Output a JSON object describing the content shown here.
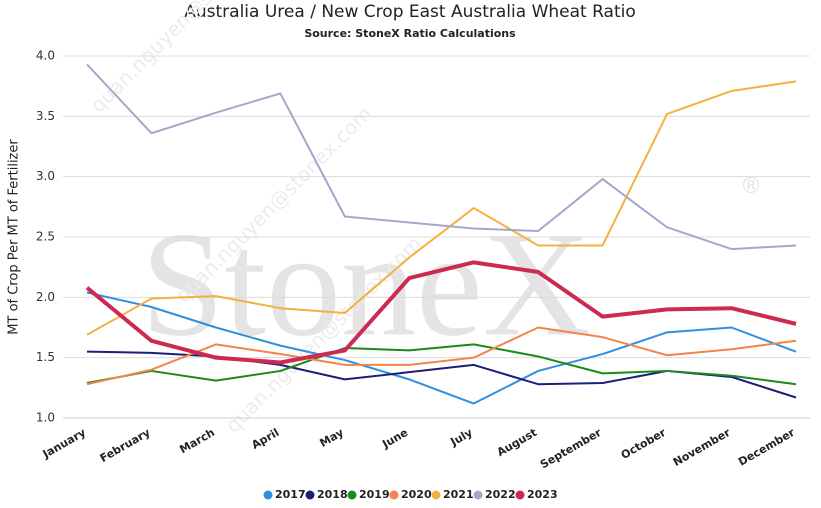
{
  "chart_data": {
    "type": "line",
    "title": "Australia Urea / New Crop East Australia Wheat Ratio",
    "subtitle": "Source: StoneX Ratio Calculations",
    "y_label": "MT of Crop Per MT of Fertilizer",
    "watermark": "StoneX",
    "watermark_mark": "®",
    "watermark_email": "quan.nguyen@stonex.com",
    "categories": [
      "January",
      "February",
      "March",
      "April",
      "May",
      "June",
      "July",
      "August",
      "September",
      "October",
      "November",
      "December"
    ],
    "ylim": [
      1.0,
      4.0
    ],
    "yticks": [
      {
        "value": 1.0,
        "label": "1.0"
      },
      1.5,
      {
        "value": 2.0,
        "label": "2.0"
      },
      2.5,
      {
        "value": 3.0,
        "label": "3.0"
      },
      3.5,
      {
        "value": 4.0,
        "label": "4.0"
      }
    ],
    "grid": true,
    "legend": "bottom",
    "series": [
      {
        "name": "2017",
        "color": "#2f8fe0",
        "values": [
          2.04,
          1.92,
          1.75,
          1.6,
          1.48,
          1.32,
          1.12,
          1.39,
          1.53,
          1.71,
          1.75,
          1.55
        ]
      },
      {
        "name": "2018",
        "color": "#1b1f7a",
        "values": [
          1.55,
          1.54,
          1.51,
          1.44,
          1.32,
          1.38,
          1.44,
          1.28,
          1.29,
          1.39,
          1.34,
          1.17
        ]
      },
      {
        "name": "2019",
        "color": "#1a8a1a",
        "values": [
          1.29,
          1.39,
          1.31,
          1.39,
          1.58,
          1.56,
          1.61,
          1.51,
          1.37,
          1.39,
          1.35,
          1.28
        ]
      },
      {
        "name": "2020",
        "color": "#f5844c",
        "values": [
          1.28,
          1.4,
          1.61,
          1.53,
          1.44,
          1.44,
          1.5,
          1.75,
          1.67,
          1.52,
          1.57,
          1.64
        ]
      },
      {
        "name": "2021",
        "color": "#f5b041",
        "values": [
          1.69,
          1.99,
          2.01,
          1.91,
          1.87,
          2.33,
          2.74,
          2.43,
          2.43,
          3.52,
          3.71,
          3.79
        ]
      },
      {
        "name": "2022",
        "color": "#a6a6cc",
        "values": [
          3.93,
          3.36,
          3.53,
          3.69,
          2.67,
          2.62,
          2.57,
          2.55,
          2.98,
          2.58,
          2.4,
          2.43
        ]
      },
      {
        "name": "2023",
        "color": "#cc2a50",
        "width": 4,
        "values": [
          2.08,
          1.64,
          1.5,
          1.46,
          1.56,
          2.16,
          2.29,
          2.21,
          1.84,
          1.9,
          1.91,
          1.78
        ]
      }
    ]
  }
}
